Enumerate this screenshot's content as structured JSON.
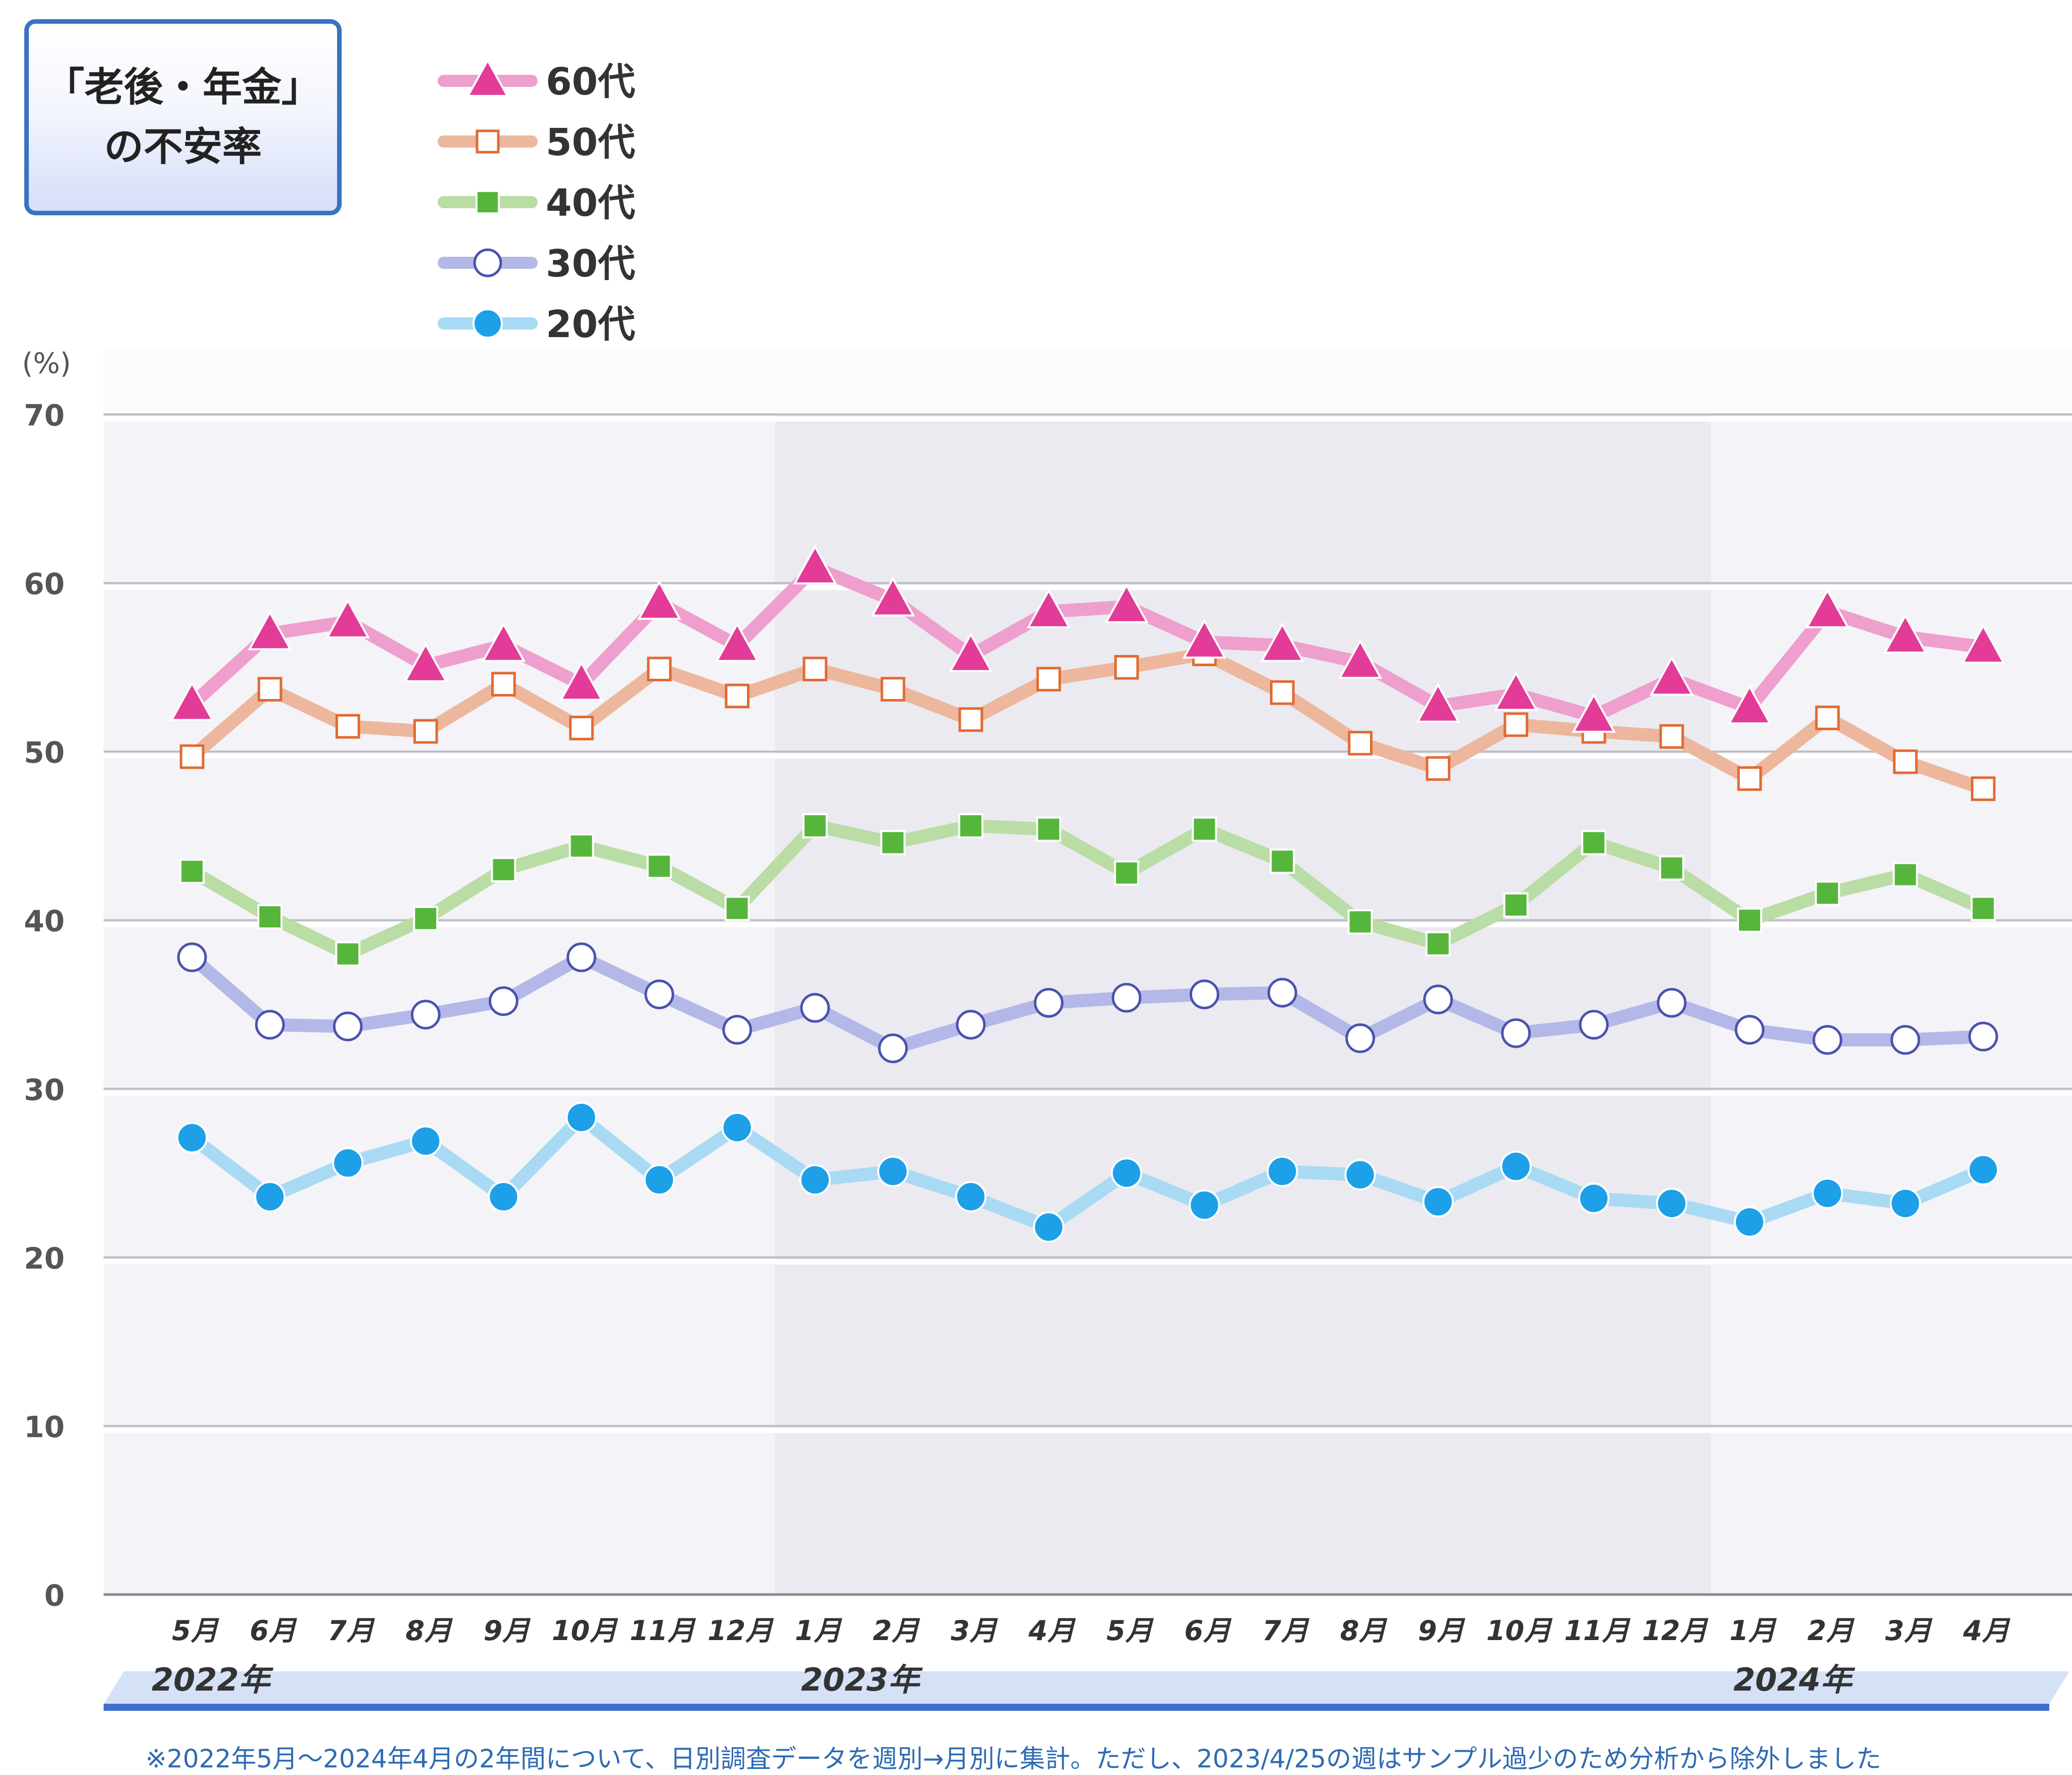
{
  "title": {
    "line1": "「老後・年金」",
    "line2": "の不安率"
  },
  "legend": [
    {
      "label": "60代",
      "color": "#ee9fcd",
      "marker_color": "#e23c98",
      "marker": "triangle"
    },
    {
      "label": "50代",
      "color": "#ecb79c",
      "marker_color": "#e26a32",
      "marker": "square-open"
    },
    {
      "label": "40代",
      "color": "#b9dda4",
      "marker_color": "#56b63c",
      "marker": "square-filled"
    },
    {
      "label": "30代",
      "color": "#b4b8e8",
      "marker_color": "#4a52ae",
      "marker": "circle-open"
    },
    {
      "label": "20代",
      "color": "#a9daf4",
      "marker_color": "#1da0e8",
      "marker": "circle-filled"
    }
  ],
  "footnote": "※2022年5月～2024年4月の2年間について、日別調査データを週別→月別に集計。ただし、2023/4/25の週はサンプル過少のため分析から除外しました",
  "chart_data": {
    "type": "line",
    "ylabel": "(%)",
    "ylim": [
      0,
      70
    ],
    "yticks": [
      0,
      10,
      20,
      30,
      40,
      50,
      60,
      70
    ],
    "grid": true,
    "legend_position": "top-left",
    "categories": [
      "5月",
      "6月",
      "7月",
      "8月",
      "9月",
      "10月",
      "11月",
      "12月",
      "1月",
      "2月",
      "3月",
      "4月",
      "5月",
      "6月",
      "7月",
      "8月",
      "9月",
      "10月",
      "11月",
      "12月",
      "1月",
      "2月",
      "3月",
      "4月"
    ],
    "year_groups": [
      {
        "label": "2022年",
        "start": 0,
        "end": 7
      },
      {
        "label": "2023年",
        "start": 8,
        "end": 19
      },
      {
        "label": "2024年",
        "start": 20,
        "end": 23
      }
    ],
    "series": [
      {
        "name": "60代",
        "values": [
          52.8,
          57.0,
          57.7,
          55.1,
          56.3,
          54.0,
          58.8,
          56.3,
          60.9,
          59.0,
          55.7,
          58.3,
          58.6,
          56.5,
          56.3,
          55.3,
          52.7,
          53.4,
          52.1,
          54.3,
          52.6,
          58.3,
          56.8,
          56.2
        ]
      },
      {
        "name": "50代",
        "values": [
          49.7,
          53.7,
          51.5,
          51.2,
          54.0,
          51.4,
          54.9,
          53.3,
          54.9,
          53.7,
          51.9,
          54.3,
          55.0,
          55.8,
          53.5,
          50.5,
          49.0,
          51.6,
          51.2,
          50.9,
          48.4,
          52.0,
          49.4,
          47.8
        ]
      },
      {
        "name": "40代",
        "values": [
          42.9,
          40.2,
          38.0,
          40.1,
          43.0,
          44.4,
          43.2,
          40.7,
          45.6,
          44.6,
          45.6,
          45.4,
          42.8,
          45.4,
          43.5,
          39.9,
          38.6,
          40.9,
          44.6,
          43.1,
          40.0,
          41.6,
          42.7,
          40.7
        ]
      },
      {
        "name": "30代",
        "values": [
          37.8,
          33.8,
          33.7,
          34.4,
          35.2,
          37.8,
          35.6,
          33.5,
          34.8,
          32.4,
          33.8,
          35.1,
          35.4,
          35.6,
          35.7,
          33.0,
          35.3,
          33.3,
          33.8,
          35.1,
          33.5,
          32.9,
          32.9,
          33.1
        ]
      },
      {
        "name": "20代",
        "values": [
          27.1,
          23.6,
          25.6,
          26.9,
          23.6,
          28.3,
          24.6,
          27.7,
          24.6,
          25.1,
          23.6,
          21.8,
          25.0,
          23.1,
          25.1,
          24.9,
          23.3,
          25.4,
          23.5,
          23.2,
          22.1,
          23.8,
          23.2,
          25.2
        ]
      }
    ]
  }
}
